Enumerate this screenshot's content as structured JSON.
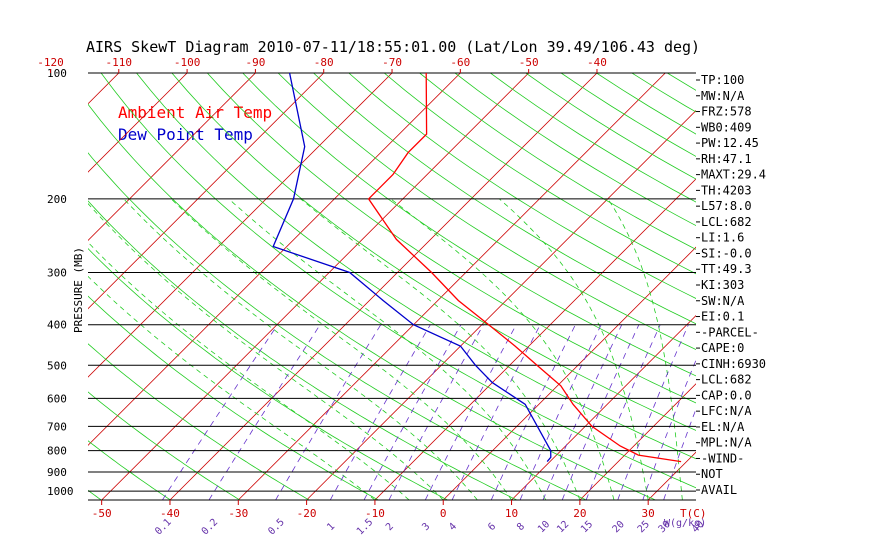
{
  "colors": {
    "temperature": "#ff0000",
    "dewpoint": "#0000cc",
    "isotherm": "#cc0000",
    "dry_adiabat": "#22cc22",
    "moist_adiabat": "#22cc22",
    "mixing_ratio": "#6633cc",
    "isobar": "#000000"
  },
  "chart_data": {
    "type": "line",
    "title": "AIRS SkewT Diagram  2010-07-11/18:55:01.00 (Lat/Lon 39.49/106.43 deg)",
    "ylabel": "PRESSURE (MB)",
    "xlabel": "T(C)",
    "mixing_ratio_unit": "W(g/kg)",
    "y_scale": "log",
    "ylim": [
      1050,
      100
    ],
    "xlim": [
      -52,
      37
    ],
    "skew": "45-degree",
    "pressure_ticks": [
      100,
      200,
      300,
      400,
      500,
      600,
      700,
      800,
      900,
      1000
    ],
    "bottom_temp_ticks": [
      -50,
      -40,
      -30,
      -20,
      -10,
      0,
      10,
      20,
      30
    ],
    "top_temp_ticks": [
      -120,
      -110,
      -100,
      -90,
      -80,
      -70,
      -60,
      -50,
      -40
    ],
    "mixing_ratio_labels": [
      "0.1",
      "0.2",
      "0.5",
      "1",
      "1.5",
      "2",
      "3",
      "4",
      "6",
      "8",
      "10",
      "12",
      "15",
      "20",
      "25",
      "30",
      "40"
    ],
    "legend": [
      "Ambient Air Temp",
      "Dew Point Temp"
    ],
    "series": [
      {
        "name": "Ambient Air Temp",
        "points": [
          [
            850,
            29.2
          ],
          [
            820,
            22
          ],
          [
            780,
            18
          ],
          [
            700,
            11
          ],
          [
            620,
            5
          ],
          [
            560,
            0.5
          ],
          [
            500,
            -6
          ],
          [
            450,
            -12
          ],
          [
            400,
            -19
          ],
          [
            350,
            -27
          ],
          [
            300,
            -35
          ],
          [
            250,
            -45
          ],
          [
            200,
            -55
          ],
          [
            175,
            -55
          ],
          [
            155,
            -56
          ],
          [
            140,
            -56
          ],
          [
            100,
            -65
          ]
        ]
      },
      {
        "name": "Dew Point Temp",
        "points": [
          [
            850,
            9.6
          ],
          [
            830,
            9.5
          ],
          [
            800,
            8.5
          ],
          [
            700,
            3
          ],
          [
            620,
            -2
          ],
          [
            550,
            -10
          ],
          [
            500,
            -15
          ],
          [
            450,
            -20
          ],
          [
            400,
            -30
          ],
          [
            350,
            -38
          ],
          [
            300,
            -47
          ],
          [
            260,
            -62
          ],
          [
            200,
            -66
          ],
          [
            150,
            -72
          ],
          [
            100,
            -85
          ]
        ]
      }
    ],
    "indices": [
      "TP:100",
      "MW:N/A",
      "FRZ:578",
      "WB0:409",
      "PW:12.45",
      "RH:47.1",
      "MAXT:29.4",
      "TH:4203",
      "L57:8.0",
      "LCL:682",
      "LI:1.6",
      "SI:-0.0",
      "TT:49.3",
      "KI:303",
      "SW:N/A",
      "EI:0.1",
      "-PARCEL-",
      "CAPE:0",
      "CINH:6930",
      "LCL:682",
      "CAP:0.0",
      "LFC:N/A",
      "EL:N/A",
      "MPL:N/A",
      "-WIND-",
      " NOT",
      "AVAIL"
    ]
  }
}
